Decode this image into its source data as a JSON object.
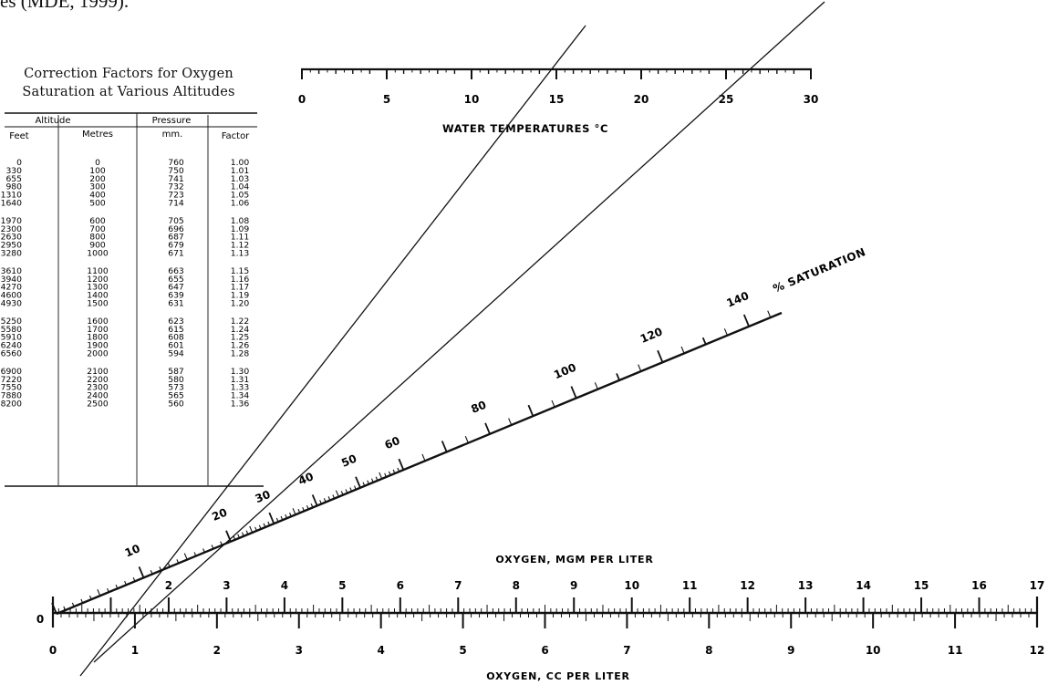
{
  "page": {
    "caption_fragment": "es (MDE, 1999)."
  },
  "correction_table": {
    "title_line1": "Correction  Factors  for  Oxygen",
    "title_line2": "Saturation  at  Various  Altitudes",
    "group_header": "Altitude",
    "columns": [
      "Feet",
      "Metres",
      "Pressure",
      "Factor"
    ],
    "pressure_unit": "mm.",
    "groups": [
      [
        [
          "0",
          "0",
          "760",
          "1.00"
        ],
        [
          "330",
          "100",
          "750",
          "1.01"
        ],
        [
          "655",
          "200",
          "741",
          "1.03"
        ],
        [
          "980",
          "300",
          "732",
          "1.04"
        ],
        [
          "1310",
          "400",
          "723",
          "1.05"
        ],
        [
          "1640",
          "500",
          "714",
          "1.06"
        ]
      ],
      [
        [
          "1970",
          "600",
          "705",
          "1.08"
        ],
        [
          "2300",
          "700",
          "696",
          "1.09"
        ],
        [
          "2630",
          "800",
          "687",
          "1.11"
        ],
        [
          "2950",
          "900",
          "679",
          "1.12"
        ],
        [
          "3280",
          "1000",
          "671",
          "1.13"
        ]
      ],
      [
        [
          "3610",
          "1100",
          "663",
          "1.15"
        ],
        [
          "3940",
          "1200",
          "655",
          "1.16"
        ],
        [
          "4270",
          "1300",
          "647",
          "1.17"
        ],
        [
          "4600",
          "1400",
          "639",
          "1.19"
        ],
        [
          "4930",
          "1500",
          "631",
          "1.20"
        ]
      ],
      [
        [
          "5250",
          "1600",
          "623",
          "1.22"
        ],
        [
          "5580",
          "1700",
          "615",
          "1.24"
        ],
        [
          "5910",
          "1800",
          "608",
          "1.25"
        ],
        [
          "6240",
          "1900",
          "601",
          "1.26"
        ],
        [
          "6560",
          "2000",
          "594",
          "1.28"
        ]
      ],
      [
        [
          "6900",
          "2100",
          "587",
          "1.30"
        ],
        [
          "7220",
          "2200",
          "580",
          "1.31"
        ],
        [
          "7550",
          "2300",
          "573",
          "1.33"
        ],
        [
          "7880",
          "2400",
          "565",
          "1.34"
        ],
        [
          "8200",
          "2500",
          "560",
          "1.36"
        ]
      ]
    ]
  },
  "temperature_scale": {
    "label": "WATER  TEMPERATURES    °C",
    "min": 0,
    "max": 30,
    "labels": [
      "0",
      "5",
      "10",
      "15",
      "20",
      "25",
      "30"
    ]
  },
  "saturation_scale": {
    "label": "% SATURATION",
    "labels": [
      "0",
      "10",
      "20",
      "30",
      "40",
      "50",
      "60",
      "80",
      "100",
      "120",
      "140"
    ]
  },
  "oxygen_mg_scale": {
    "label": "OXYGEN,  MGM  PER  LITER",
    "min": 0,
    "max": 17,
    "labels": [
      "2",
      "3",
      "4",
      "5",
      "6",
      "7",
      "8",
      "9",
      "10",
      "11",
      "12",
      "13",
      "14",
      "15",
      "16",
      "17"
    ]
  },
  "oxygen_cc_scale": {
    "label": "OXYGEN,  CC  PER  LITER",
    "min": 0,
    "max": 12,
    "labels": [
      "0",
      "1",
      "2",
      "3",
      "4",
      "5",
      "6",
      "7",
      "8",
      "9",
      "10",
      "11",
      "12"
    ]
  }
}
